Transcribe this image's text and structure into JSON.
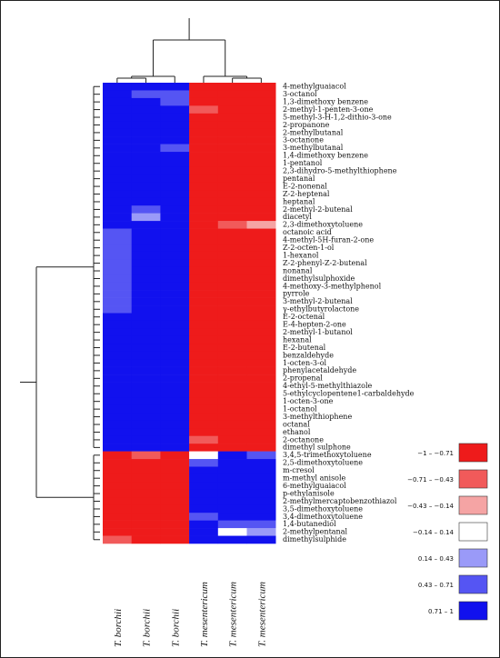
{
  "chart_data": {
    "type": "heatmap",
    "columns": [
      "T. borchii",
      "T. borchii",
      "T. borchii",
      "T. mesentericum",
      "T. mesentericum",
      "T. mesentericum"
    ],
    "rows": [
      "4-methylguaiacol",
      "3-octanol",
      "1,3-dimethoxy benzene",
      "2-methyl-1-penten-3-one",
      "5-methyl-3-H-1,2-dithio-3-one",
      "2-propanone",
      "2-methylbutanal",
      "3-octanone",
      "3-methylbutanal",
      "1,4-dimethoxy benzene",
      "1-pentanol",
      "2,3-dihydro-5-methylthiophene",
      "pentanal",
      "E-2-nonenal",
      "Z-2-heptenal",
      "heptanal",
      "2-methyl-2-butenal",
      "diacetyl",
      "2,3-dimethoxytoluene",
      "octanoic acid",
      "4-methyl-5H-furan-2-one",
      "Z-2-octen-1-ol",
      "1-hexanol",
      "Z-2-phenyl-Z-2-butenal",
      "nonanal",
      "dimethylsulphoxide",
      "4-methoxy-3-methylphenol",
      "pyrrole",
      "3-methyl-2-butenal",
      "γ-ethylbutyrolactone",
      "E-2-octenal",
      "E-4-hepten-2-one",
      "2-methyl-1-butanol",
      "hexanal",
      "E-2-butenal",
      "benzaldehyde",
      "1-octen-3-ol",
      "phenylacetaldehyde",
      "2-propenal",
      "4-ethyl-5-methylthiazole",
      "5-ethylcyclopentene1-carbaldehyde",
      "1-octen-3-one",
      "1-octanol",
      "3-methylthiophene",
      "octanal",
      "ethanol",
      "2-octanone",
      "dimethyl sulphone",
      "3,4,5-trimethoxytoluene",
      "2,5-dimethoxytoluene",
      "m-cresol",
      "m-methyl anisole",
      "6-methylguaiacol",
      "p-ethylanisole",
      "2-methylmercaptobenzothiazol",
      "3,5-dimethoxytoluene",
      "3,4-dimethoxytoluene",
      "1,4-butanediol",
      "2-methylpentanal",
      "dimethylsulphide"
    ],
    "values": [
      [
        0.9,
        0.9,
        0.9,
        -0.9,
        -0.9,
        -0.9
      ],
      [
        0.9,
        0.65,
        0.65,
        -0.9,
        -0.9,
        -0.9
      ],
      [
        0.9,
        0.8,
        0.6,
        -0.9,
        -0.9,
        -0.9
      ],
      [
        0.9,
        0.8,
        0.8,
        -0.6,
        -0.9,
        -0.9
      ],
      [
        0.9,
        0.8,
        0.8,
        -0.9,
        -0.9,
        -0.9
      ],
      [
        0.9,
        0.8,
        0.8,
        -0.9,
        -0.9,
        -0.9
      ],
      [
        0.9,
        0.8,
        0.8,
        -0.9,
        -0.9,
        -0.9
      ],
      [
        0.9,
        0.8,
        0.8,
        -0.9,
        -0.9,
        -0.9
      ],
      [
        0.9,
        0.8,
        0.6,
        -0.9,
        -0.9,
        -0.9
      ],
      [
        0.9,
        0.8,
        0.8,
        -0.9,
        -0.9,
        -0.9
      ],
      [
        0.9,
        0.8,
        0.8,
        -0.9,
        -0.9,
        -0.9
      ],
      [
        0.9,
        0.8,
        0.8,
        -0.9,
        -0.9,
        -0.9
      ],
      [
        0.9,
        0.8,
        0.8,
        -0.9,
        -0.9,
        -0.9
      ],
      [
        0.9,
        0.8,
        0.8,
        -0.9,
        -0.9,
        -0.9
      ],
      [
        0.9,
        0.8,
        0.8,
        -0.9,
        -0.9,
        -0.9
      ],
      [
        0.9,
        0.8,
        0.8,
        -0.9,
        -0.9,
        -0.9
      ],
      [
        0.9,
        0.6,
        0.8,
        -0.9,
        -0.9,
        -0.9
      ],
      [
        0.9,
        0.4,
        0.9,
        -0.9,
        -0.9,
        -0.9
      ],
      [
        0.8,
        0.8,
        0.8,
        -0.8,
        -0.6,
        -0.4
      ],
      [
        0.5,
        0.8,
        0.8,
        -0.9,
        -0.9,
        -0.9
      ],
      [
        0.6,
        0.8,
        0.9,
        -0.9,
        -0.9,
        -0.9
      ],
      [
        0.6,
        0.8,
        0.8,
        -0.9,
        -0.9,
        -0.9
      ],
      [
        0.6,
        0.8,
        0.9,
        -0.9,
        -0.9,
        -0.9
      ],
      [
        0.6,
        0.8,
        0.8,
        -0.9,
        -0.9,
        -0.9
      ],
      [
        0.6,
        0.8,
        0.8,
        -0.9,
        -0.9,
        -0.9
      ],
      [
        0.6,
        0.8,
        0.9,
        -0.9,
        -0.9,
        -0.9
      ],
      [
        0.6,
        0.8,
        0.8,
        -0.8,
        -0.9,
        -0.9
      ],
      [
        0.6,
        0.8,
        0.9,
        -0.9,
        -0.9,
        -0.9
      ],
      [
        0.6,
        0.8,
        0.8,
        -0.9,
        -0.9,
        -0.9
      ],
      [
        0.6,
        0.8,
        0.9,
        -0.9,
        -0.9,
        -0.9
      ],
      [
        0.8,
        0.8,
        0.8,
        -0.9,
        -0.9,
        -0.9
      ],
      [
        0.8,
        0.8,
        0.8,
        -0.9,
        -0.9,
        -0.9
      ],
      [
        0.8,
        0.8,
        0.8,
        -0.9,
        -0.9,
        -0.9
      ],
      [
        0.8,
        0.8,
        0.8,
        -0.9,
        -0.9,
        -0.9
      ],
      [
        0.8,
        0.8,
        0.9,
        -0.9,
        -0.8,
        -0.9
      ],
      [
        0.8,
        0.8,
        0.8,
        -0.9,
        -0.9,
        -0.9
      ],
      [
        0.8,
        0.8,
        0.8,
        -0.9,
        -0.9,
        -0.9
      ],
      [
        0.8,
        0.8,
        0.8,
        -0.9,
        -0.9,
        -0.9
      ],
      [
        0.8,
        0.8,
        0.8,
        -0.9,
        -0.9,
        -0.9
      ],
      [
        0.8,
        0.8,
        0.8,
        -0.9,
        -0.9,
        -0.9
      ],
      [
        0.8,
        0.8,
        0.8,
        -0.9,
        -0.9,
        -0.9
      ],
      [
        0.8,
        0.8,
        0.8,
        -0.9,
        -0.9,
        -0.9
      ],
      [
        0.8,
        0.8,
        0.8,
        -0.9,
        -0.9,
        -0.9
      ],
      [
        0.8,
        0.8,
        0.8,
        -0.9,
        -0.9,
        -0.9
      ],
      [
        0.8,
        0.8,
        0.8,
        -0.9,
        -0.9,
        -0.9
      ],
      [
        0.8,
        0.8,
        0.8,
        -0.9,
        -0.9,
        -0.9
      ],
      [
        0.8,
        0.8,
        0.8,
        -0.7,
        -0.9,
        -0.9
      ],
      [
        0.8,
        0.8,
        0.8,
        -0.8,
        -0.8,
        -0.8
      ],
      [
        -0.9,
        -0.7,
        -0.9,
        0.0,
        0.8,
        0.6
      ],
      [
        -0.9,
        -0.9,
        -0.9,
        0.6,
        0.9,
        0.8
      ],
      [
        -0.9,
        -0.9,
        -0.9,
        0.8,
        0.8,
        0.8
      ],
      [
        -0.9,
        -0.9,
        -0.9,
        0.8,
        0.8,
        0.8
      ],
      [
        -0.9,
        -0.9,
        -0.9,
        0.8,
        0.8,
        0.8
      ],
      [
        -0.9,
        -0.9,
        -0.9,
        0.9,
        0.8,
        0.8
      ],
      [
        -0.9,
        -0.9,
        -0.9,
        0.8,
        0.8,
        0.8
      ],
      [
        -0.8,
        -0.9,
        -0.9,
        0.8,
        0.8,
        0.9
      ],
      [
        -0.9,
        -0.9,
        -0.9,
        0.6,
        0.8,
        0.8
      ],
      [
        -0.9,
        -0.9,
        -0.9,
        0.8,
        0.6,
        0.6
      ],
      [
        -0.9,
        -0.9,
        -0.9,
        0.8,
        0.0,
        0.4
      ],
      [
        -0.5,
        -0.9,
        -0.9,
        0.8,
        0.8,
        0.8
      ]
    ],
    "legend": [
      {
        "label": "−1 – −0.71",
        "color": "#ee1b1b"
      },
      {
        "label": "−0.71 – −0.43",
        "color": "#f15a5a"
      },
      {
        "label": "−0.43 – −0.14",
        "color": "#f5a4a4"
      },
      {
        "label": "−0.14 – 0.14",
        "color": "#ffffff"
      },
      {
        "label": "0.14 – 0.43",
        "color": "#9a9af8"
      },
      {
        "label": "0.43 – 0.71",
        "color": "#5555f3"
      },
      {
        "label": "0.71 – 1",
        "color": "#1111ee"
      }
    ],
    "colors": {
      "negative": "#ee1b1b",
      "positive": "#1111ee",
      "neutral": "#ffffff"
    },
    "dendrogram_top": "2 clusters: T. borchii | T. mesentericum",
    "dendrogram_left": "2 clusters: rows 1–48 | rows 49–60"
  }
}
